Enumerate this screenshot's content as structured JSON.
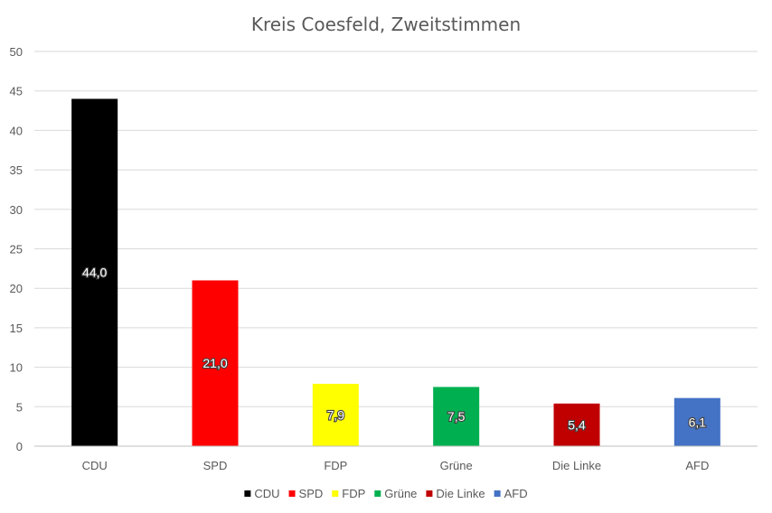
{
  "chart_data": {
    "type": "bar",
    "title": "Kreis Coesfeld, Zweitstimmen",
    "categories": [
      "CDU",
      "SPD",
      "FDP",
      "Grüne",
      "Die Linke",
      "AFD"
    ],
    "values": [
      44.0,
      21.0,
      7.9,
      7.5,
      5.4,
      6.1
    ],
    "value_labels": [
      "44,0",
      "21,0",
      "7,9",
      "7,5",
      "5,4",
      "6,1"
    ],
    "colors": [
      "#000000",
      "#ff0000",
      "#ffff00",
      "#00b050",
      "#c00000",
      "#4472c4"
    ],
    "yticks": [
      "0",
      "5",
      "10",
      "15",
      "20",
      "25",
      "30",
      "35",
      "40",
      "45",
      "50"
    ],
    "ylim": [
      0,
      50
    ],
    "grid": true,
    "legend_position": "bottom",
    "xlabel": "",
    "ylabel": ""
  }
}
